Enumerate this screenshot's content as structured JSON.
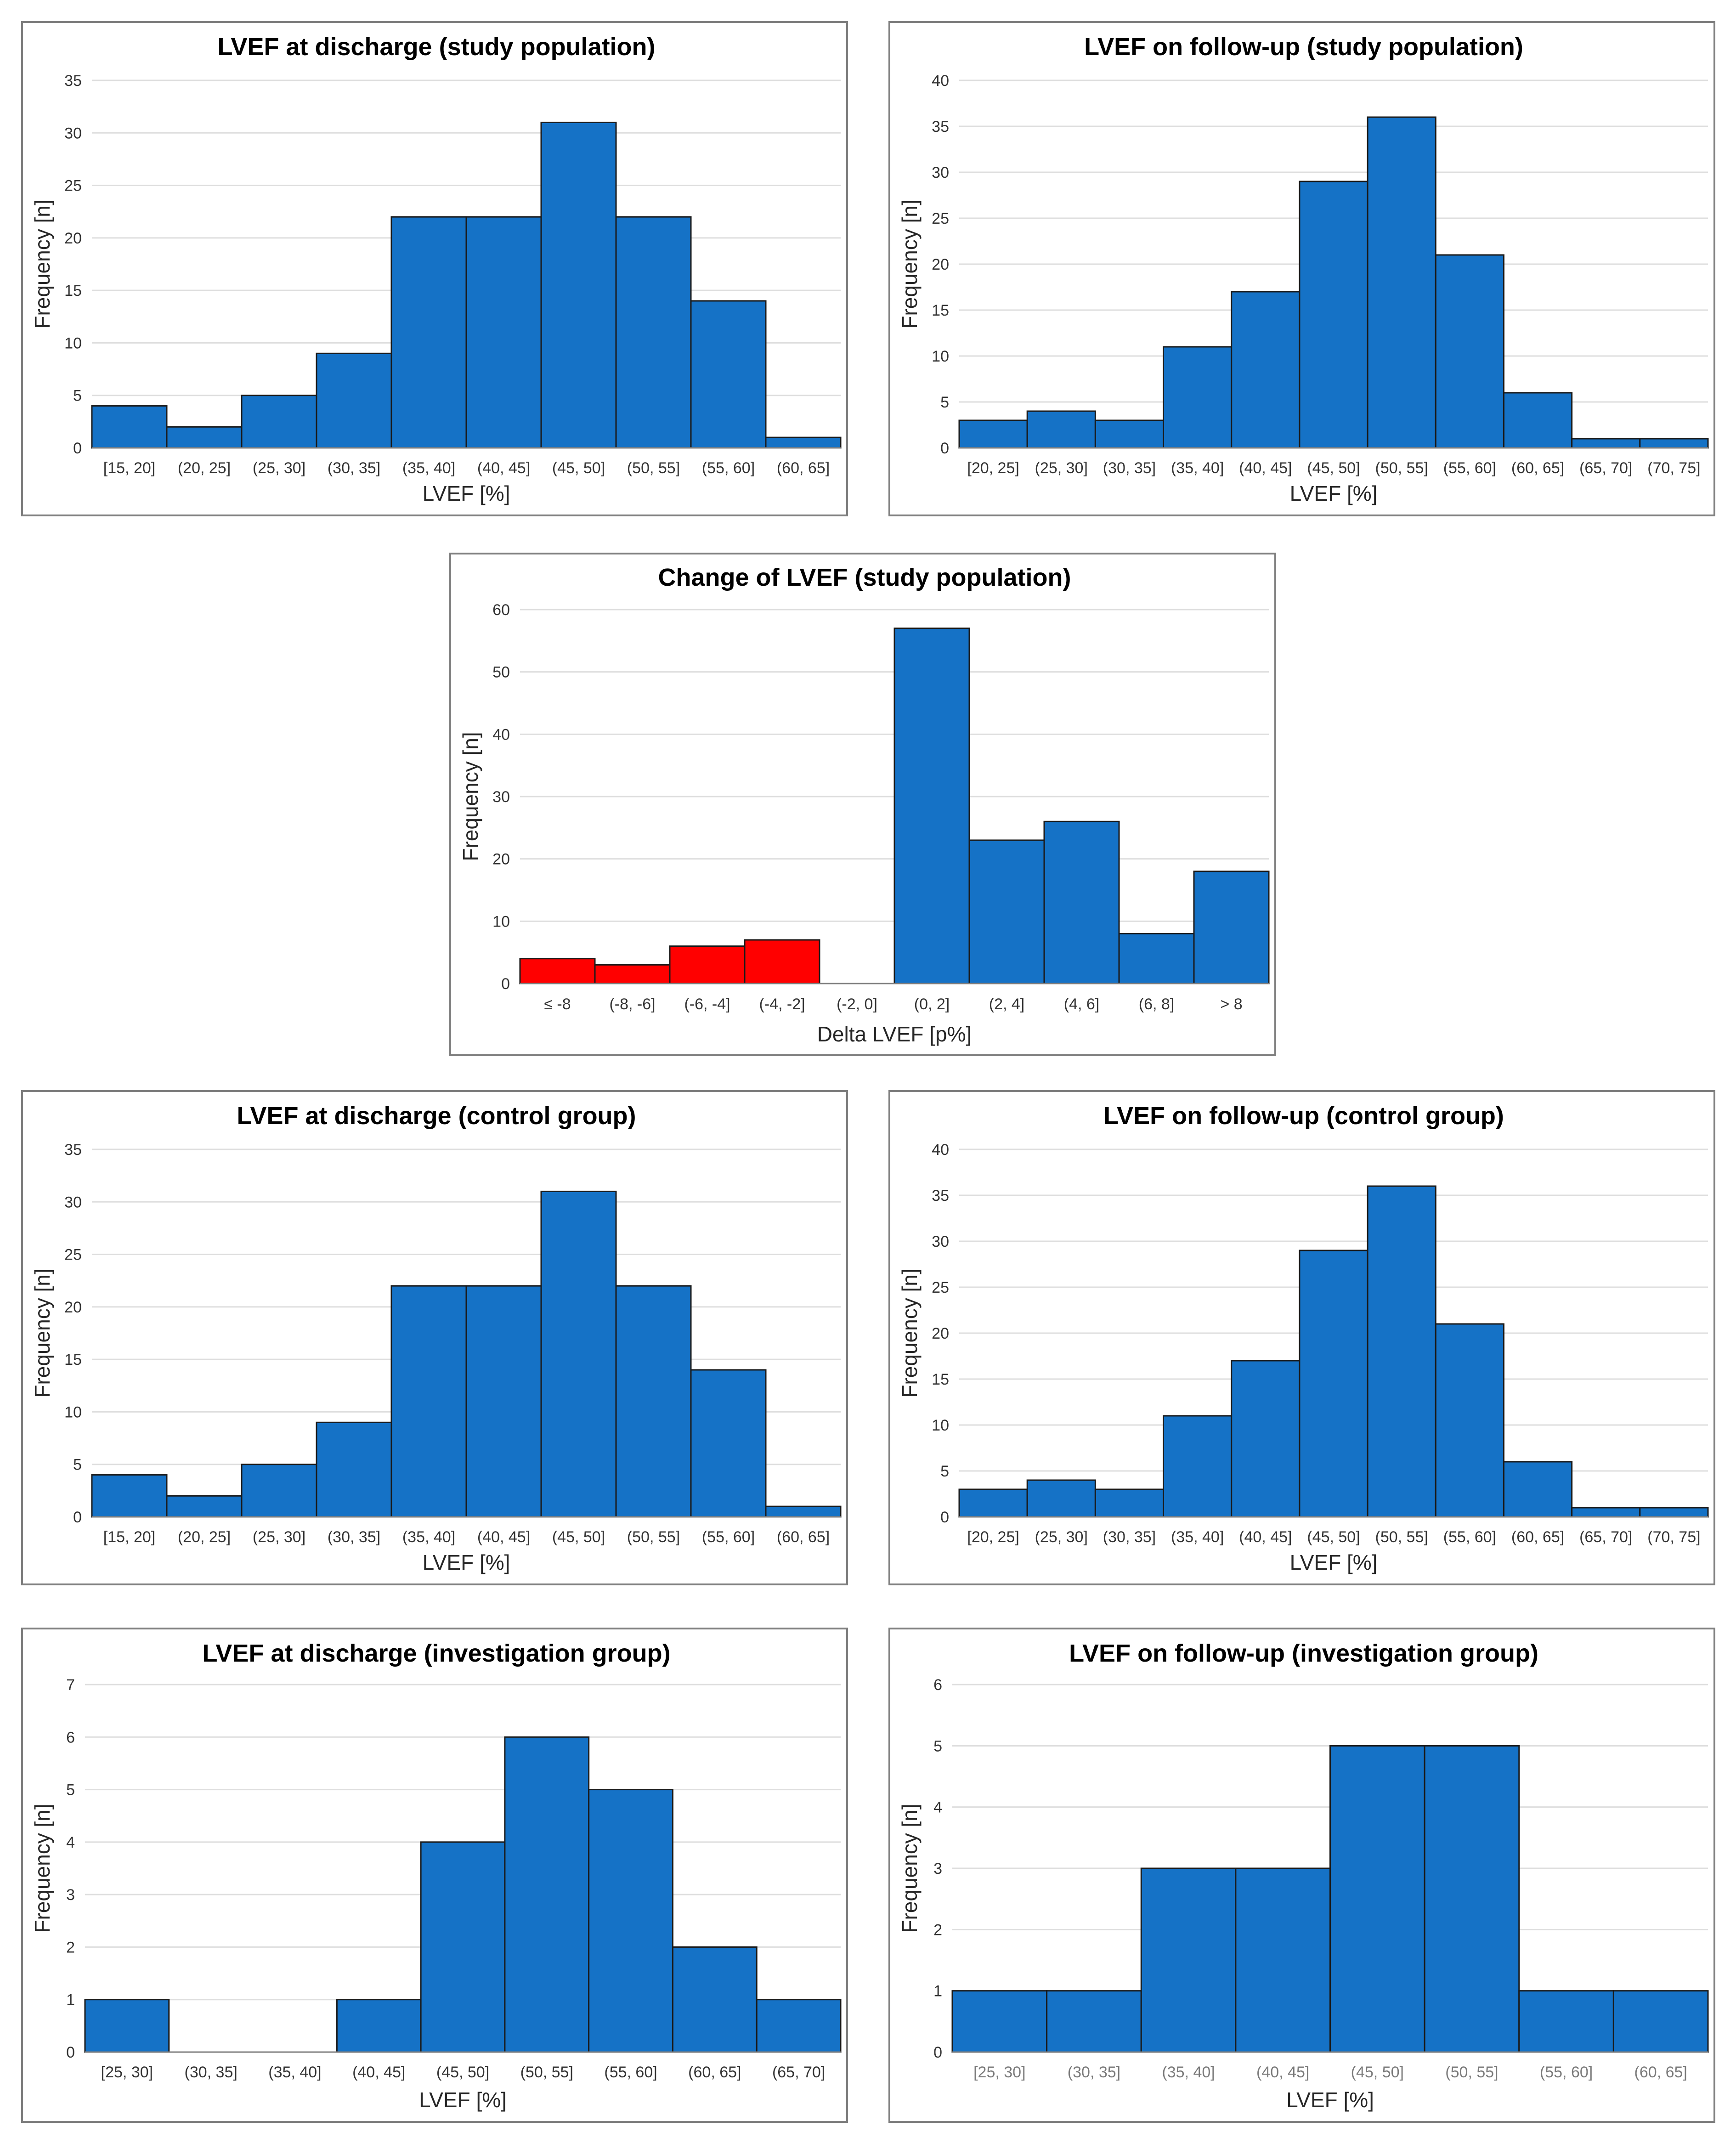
{
  "colors": {
    "bar": "#1572c6",
    "negative": "#ff0000",
    "outline": "#1a1a1a",
    "grid": "#dedede",
    "border": "#7f7f7f"
  },
  "chart_data": [
    {
      "id": "discharge-study",
      "type": "bar",
      "title": "LVEF at discharge (study population)",
      "xlabel": "LVEF [%]",
      "ylabel": "Frequency [n]",
      "categories": [
        "[15, 20]",
        "(20, 25]",
        "(25, 30]",
        "(30, 35]",
        "(35, 40]",
        "(40, 45]",
        "(45, 50]",
        "(50, 55]",
        "(55, 60]",
        "(60, 65]"
      ],
      "values": [
        4,
        2,
        5,
        9,
        22,
        22,
        31,
        22,
        14,
        1
      ],
      "ylim": [
        0,
        35
      ],
      "ytick_step": 5,
      "grid": true
    },
    {
      "id": "followup-study",
      "type": "bar",
      "title": "LVEF on follow-up (study population)",
      "xlabel": "LVEF [%]",
      "ylabel": "Frequency [n]",
      "categories": [
        "[20, 25]",
        "(25, 30]",
        "(30, 35]",
        "(35, 40]",
        "(40, 45]",
        "(45, 50]",
        "(50, 55]",
        "(55, 60]",
        "(60, 65]",
        "(65, 70]",
        "(70, 75]"
      ],
      "values": [
        3,
        4,
        3,
        11,
        17,
        29,
        36,
        21,
        6,
        1,
        1
      ],
      "ylim": [
        0,
        40
      ],
      "ytick_step": 5,
      "grid": true
    },
    {
      "id": "change-study",
      "type": "bar",
      "title": "Change of LVEF (study population)",
      "xlabel": "Delta LVEF [p%]",
      "ylabel": "Frequency [n]",
      "categories": [
        "≤ -8",
        "(-8, -6]",
        "(-6, -4]",
        "(-4, -2]",
        "(-2, 0]",
        "(0, 2]",
        "(2, 4]",
        "(4, 6]",
        "(6, 8]",
        "> 8"
      ],
      "values": [
        4,
        3,
        6,
        7,
        0,
        57,
        23,
        26,
        8,
        18
      ],
      "negative_categories": 4,
      "ylim": [
        0,
        60
      ],
      "ytick_step": 10,
      "grid": true
    },
    {
      "id": "discharge-control",
      "type": "bar",
      "title": "LVEF at discharge (control group)",
      "xlabel": "LVEF [%]",
      "ylabel": "Frequency [n]",
      "categories": [
        "[15, 20]",
        "(20, 25]",
        "(25, 30]",
        "(30, 35]",
        "(35, 40]",
        "(40, 45]",
        "(45, 50]",
        "(50, 55]",
        "(55, 60]",
        "(60, 65]"
      ],
      "values": [
        4,
        2,
        5,
        9,
        22,
        22,
        31,
        22,
        14,
        1
      ],
      "ylim": [
        0,
        35
      ],
      "ytick_step": 5,
      "grid": true
    },
    {
      "id": "followup-control",
      "type": "bar",
      "title": "LVEF on follow-up (control group)",
      "xlabel": "LVEF [%]",
      "ylabel": "Frequency [n]",
      "categories": [
        "[20, 25]",
        "(25, 30]",
        "(30, 35]",
        "(35, 40]",
        "(40, 45]",
        "(45, 50]",
        "(50, 55]",
        "(55, 60]",
        "(60, 65]",
        "(65, 70]",
        "(70, 75]"
      ],
      "values": [
        3,
        4,
        3,
        11,
        17,
        29,
        36,
        21,
        6,
        1,
        1
      ],
      "ylim": [
        0,
        40
      ],
      "ytick_step": 5,
      "grid": true
    },
    {
      "id": "discharge-investigation",
      "type": "bar",
      "title": "LVEF at discharge (investigation group)",
      "xlabel": "LVEF [%]",
      "ylabel": "Frequency [n]",
      "categories": [
        "[25, 30]",
        "(30, 35]",
        "(35, 40]",
        "(40, 45]",
        "(45, 50]",
        "(50, 55]",
        "(55, 60]",
        "(60, 65]",
        "(65, 70]"
      ],
      "values": [
        1,
        0,
        0,
        1,
        4,
        6,
        5,
        2,
        1
      ],
      "ylim": [
        0,
        7
      ],
      "ytick_step": 1,
      "grid": true
    },
    {
      "id": "followup-investigation",
      "type": "bar",
      "title": "LVEF on follow-up (investigation group)",
      "xlabel": "LVEF [%]",
      "ylabel": "Frequency [n]",
      "categories": [
        "[25, 30]",
        "(30, 35]",
        "(35, 40]",
        "(40, 45]",
        "(45, 50]",
        "(50, 55]",
        "(55, 60]",
        "(60, 65]"
      ],
      "values": [
        1,
        1,
        3,
        3,
        5,
        5,
        1,
        1
      ],
      "ylim": [
        0,
        6
      ],
      "ytick_step": 1,
      "grid": true,
      "muted_ticks": true
    }
  ]
}
